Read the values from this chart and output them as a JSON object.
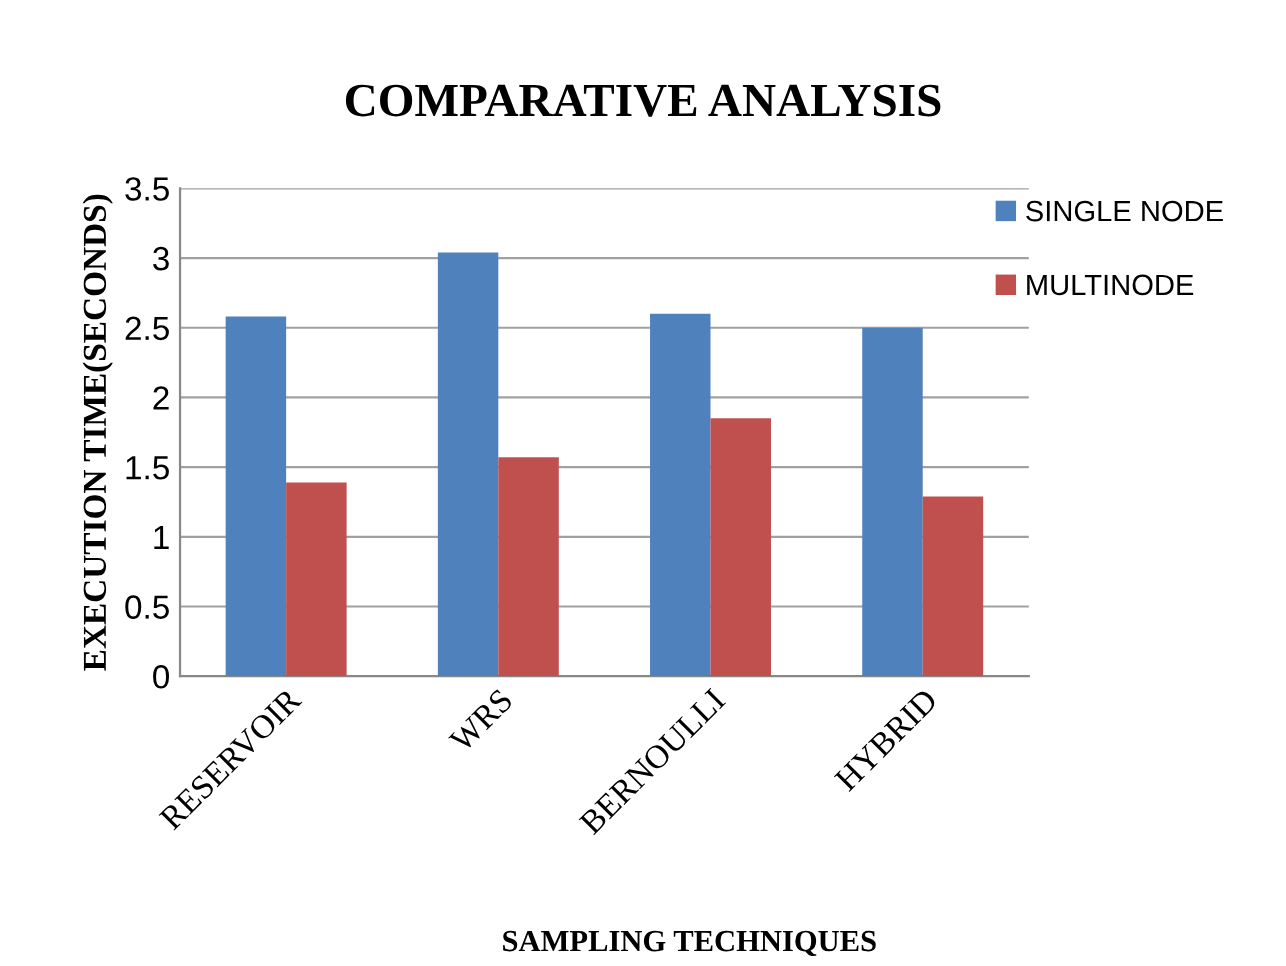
{
  "chart_data": {
    "type": "bar",
    "title": "COMPARATIVE ANALYSIS",
    "xlabel": "SAMPLING TECHNIQUES",
    "ylabel": "EXECUTION TIME(SECONDS)",
    "categories": [
      "RESERVOIR",
      "WRS",
      "BERNOULLI",
      "HYBRID"
    ],
    "series": [
      {
        "name": "SINGLE NODE",
        "color": "#4f81bd",
        "values": [
          2.58,
          3.04,
          2.6,
          2.5
        ]
      },
      {
        "name": "MULTINODE",
        "color": "#c0504d",
        "values": [
          1.39,
          1.57,
          1.85,
          1.29
        ]
      }
    ],
    "ylim": [
      0,
      3.5
    ],
    "yticks": [
      0,
      0.5,
      1,
      1.5,
      2,
      2.5,
      3,
      3.5
    ],
    "grid": "y",
    "legend": "top right"
  }
}
